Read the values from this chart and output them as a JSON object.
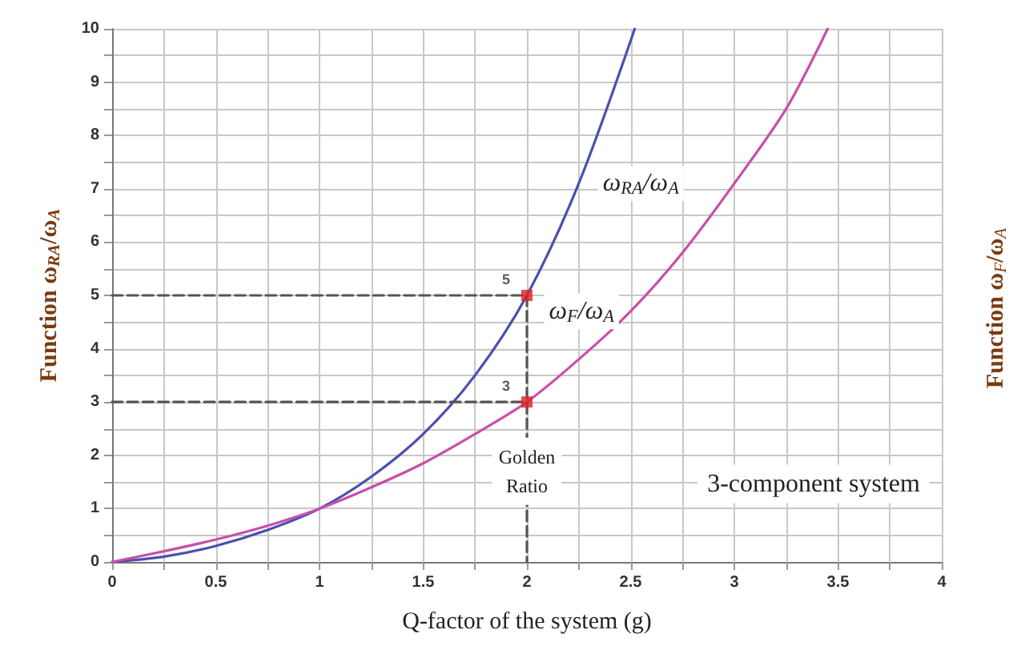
{
  "chart_data": {
    "type": "line",
    "xlabel": "Q-factor of the system (g)",
    "ylabel": "Function ω$_{RA}$/ω$_{A}$",
    "y2label": "Function ω$_{F}$/ω$_{A}$",
    "xlim": [
      0,
      4
    ],
    "xticks": [
      0,
      {
        "value": 0.25,
        "label": null
      },
      0.5,
      {
        "value": 0.75,
        "label": null
      },
      1,
      {
        "value": 1.25,
        "label": null
      },
      1.5,
      {
        "value": 1.75,
        "label": null
      },
      2,
      {
        "value": 2.25,
        "label": null
      },
      2.5,
      {
        "value": 2.75,
        "label": null
      },
      3,
      {
        "value": 3.25,
        "label": null
      },
      3.5,
      {
        "value": 3.75,
        "label": null
      },
      4
    ],
    "ylim": [
      0,
      10
    ],
    "yticks": [
      0,
      {
        "value": 0.5,
        "label": null
      },
      1,
      {
        "value": 1.5,
        "label": null
      },
      2,
      {
        "value": 2.5,
        "label": null
      },
      3,
      {
        "value": 3.5,
        "label": null
      },
      4,
      {
        "value": 4.5,
        "label": null
      },
      5,
      {
        "value": 5.5,
        "label": null
      },
      6,
      {
        "value": 6.5,
        "label": null
      },
      7,
      {
        "value": 7.5,
        "label": null
      },
      8,
      {
        "value": 8.5,
        "label": null
      },
      9,
      {
        "value": 9.5,
        "label": null
      },
      10
    ],
    "grid": true,
    "legend": false,
    "marker": "none",
    "series": [
      {
        "name": "ω$_{RA}$/ω$_{A}$",
        "color": "#4a4fb0",
        "x": [
          0,
          0.25,
          0.5,
          0.75,
          1,
          1.25,
          1.5,
          1.75,
          2,
          2.25,
          2.52
        ],
        "values": [
          0,
          0.1,
          0.3,
          0.6,
          1,
          1.6,
          2.4,
          3.5,
          5,
          7.1,
          10
        ]
      },
      {
        "name": "ω$_{F}$/ω$_{A}$",
        "color": "#c84fa8",
        "x": [
          0,
          0.25,
          0.5,
          0.75,
          1,
          1.25,
          1.5,
          1.75,
          2,
          2.25,
          2.5,
          2.75,
          3,
          3.25,
          3.45
        ],
        "values": [
          0,
          0.2,
          0.42,
          0.68,
          1,
          1.4,
          1.85,
          2.4,
          3,
          3.8,
          4.7,
          5.8,
          7.1,
          8.5,
          10
        ]
      },
      {
        "type": "line",
        "color": "#555555",
        "line_style": "dashed",
        "x": [
          0,
          2,
          2
        ],
        "values": [
          5,
          5,
          0
        ]
      },
      {
        "type": "line",
        "color": "#555555",
        "line_style": "dashed",
        "x": [
          0,
          2
        ],
        "values": [
          3,
          3
        ]
      },
      {
        "type": "scatter",
        "marker": "square",
        "color": "#e02020",
        "x": [
          2,
          2
        ],
        "values": [
          5,
          3
        ],
        "value_labels": [
          "5",
          "3"
        ]
      }
    ],
    "annotations": [
      {
        "text": "Golden Ratio",
        "x": 2,
        "y": 1.7
      },
      "3-component system"
    ]
  }
}
